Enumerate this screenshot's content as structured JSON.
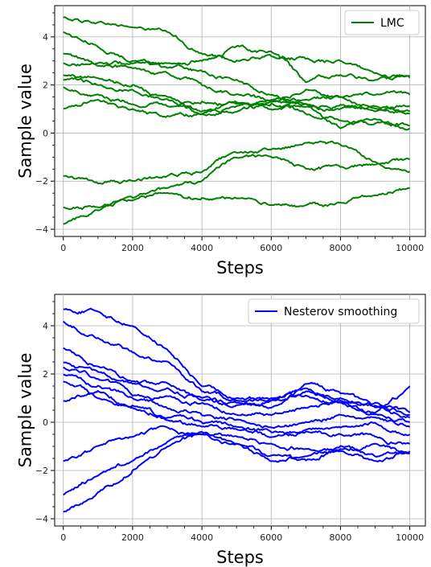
{
  "chart_data": [
    {
      "type": "line",
      "xlabel": "Steps",
      "ylabel": "Sample value",
      "xlim": [
        -250,
        10450
      ],
      "ylim": [
        -4.3,
        5.3
      ],
      "xticks": [
        0,
        2000,
        4000,
        6000,
        8000,
        10000
      ],
      "yticks": [
        -4,
        -2,
        0,
        2,
        4
      ],
      "grid": true,
      "legend_position": "upper right",
      "legend": [
        "LMC"
      ],
      "color": "#008000",
      "x": [
        0,
        1000,
        2000,
        3000,
        4000,
        5000,
        6000,
        7000,
        8000,
        9000,
        10000
      ],
      "series": [
        {
          "values": [
            4.8,
            4.6,
            4.4,
            4.2,
            3.3,
            3.0,
            3.2,
            3.1,
            3.0,
            2.5,
            2.3
          ]
        },
        {
          "values": [
            4.2,
            3.6,
            3.0,
            2.9,
            3.0,
            3.6,
            3.4,
            2.1,
            2.4,
            2.2,
            2.4
          ]
        },
        {
          "values": [
            3.3,
            2.8,
            2.7,
            2.5,
            2.0,
            1.6,
            1.3,
            1.4,
            1.5,
            1.6,
            1.6
          ]
        },
        {
          "values": [
            2.9,
            2.9,
            2.9,
            2.7,
            2.6,
            2.2,
            1.6,
            1.2,
            1.0,
            1.1,
            1.1
          ]
        },
        {
          "values": [
            2.4,
            2.3,
            2.0,
            1.5,
            1.3,
            1.2,
            1.0,
            1.1,
            1.2,
            0.9,
            0.9
          ]
        },
        {
          "values": [
            2.2,
            2.0,
            1.8,
            1.4,
            0.9,
            1.1,
            1.4,
            1.8,
            1.5,
            1.0,
            0.8
          ]
        },
        {
          "values": [
            1.9,
            1.6,
            1.2,
            1.1,
            0.8,
            1.3,
            1.2,
            0.8,
            0.5,
            0.4,
            0.3
          ]
        },
        {
          "values": [
            1.0,
            1.4,
            1.0,
            0.7,
            0.8,
            0.9,
            1.3,
            1.2,
            0.2,
            0.6,
            0.2
          ]
        },
        {
          "values": [
            -1.8,
            -2.1,
            -2.0,
            -1.8,
            -1.6,
            -0.8,
            -0.7,
            -0.4,
            -0.5,
            -1.2,
            -1.6
          ]
        },
        {
          "values": [
            -3.1,
            -3.1,
            -2.7,
            -2.3,
            -2.0,
            -1.0,
            -1.0,
            -1.5,
            -1.4,
            -1.3,
            -1.1
          ]
        },
        {
          "values": [
            -3.8,
            -3.2,
            -2.8,
            -2.5,
            -2.7,
            -2.7,
            -3.0,
            -3.0,
            -2.9,
            -2.6,
            -2.3
          ]
        }
      ]
    },
    {
      "type": "line",
      "xlabel": "Steps",
      "ylabel": "Sample value",
      "xlim": [
        -250,
        10450
      ],
      "ylim": [
        -4.3,
        5.3
      ],
      "xticks": [
        0,
        2000,
        4000,
        6000,
        8000,
        10000
      ],
      "yticks": [
        -4,
        -2,
        0,
        2,
        4
      ],
      "grid": true,
      "legend_position": "upper right",
      "legend": [
        "Nesterov smoothing"
      ],
      "color": "#0000ff",
      "x": [
        0,
        1000,
        2000,
        3000,
        4000,
        5000,
        6000,
        7000,
        8000,
        9000,
        10000
      ],
      "series": [
        {
          "values": [
            4.7,
            4.6,
            4.0,
            3.0,
            1.5,
            1.0,
            0.9,
            1.3,
            1.0,
            0.8,
            0.3
          ]
        },
        {
          "values": [
            4.2,
            3.5,
            2.9,
            2.5,
            1.3,
            0.9,
            1.0,
            1.1,
            0.8,
            0.7,
            0.4
          ]
        },
        {
          "values": [
            3.1,
            2.3,
            1.7,
            1.6,
            0.9,
            0.8,
            0.6,
            1.6,
            1.2,
            0.6,
            0.2
          ]
        },
        {
          "values": [
            2.5,
            2.1,
            1.6,
            1.4,
            1.0,
            0.7,
            0.9,
            1.4,
            0.8,
            0.4,
            1.5
          ]
        },
        {
          "values": [
            2.3,
            1.8,
            1.1,
            1.1,
            0.8,
            0.3,
            0.3,
            0.6,
            0.9,
            0.3,
            0.0
          ]
        },
        {
          "values": [
            2.0,
            1.5,
            1.0,
            0.6,
            0.3,
            0.1,
            -0.2,
            0.0,
            0.3,
            0.2,
            -0.2
          ]
        },
        {
          "values": [
            1.7,
            1.0,
            0.6,
            0.2,
            0.0,
            -0.2,
            -0.4,
            -0.3,
            -0.2,
            0.0,
            -0.5
          ]
        },
        {
          "values": [
            0.9,
            1.3,
            0.7,
            0.1,
            -0.2,
            -0.3,
            -0.6,
            -0.4,
            -0.5,
            -0.6,
            -0.9
          ]
        },
        {
          "values": [
            -1.6,
            -1.0,
            -0.6,
            -0.2,
            -0.5,
            -0.9,
            -1.6,
            -1.4,
            -1.0,
            -1.4,
            -1.3
          ]
        },
        {
          "values": [
            -3.0,
            -2.2,
            -1.6,
            -0.8,
            -0.4,
            -0.9,
            -1.4,
            -1.6,
            -1.1,
            -0.9,
            -1.3
          ]
        },
        {
          "values": [
            -3.7,
            -2.9,
            -2.0,
            -1.0,
            -0.5,
            -0.6,
            -0.9,
            -1.1,
            -1.2,
            -1.6,
            -1.2
          ]
        }
      ]
    }
  ]
}
